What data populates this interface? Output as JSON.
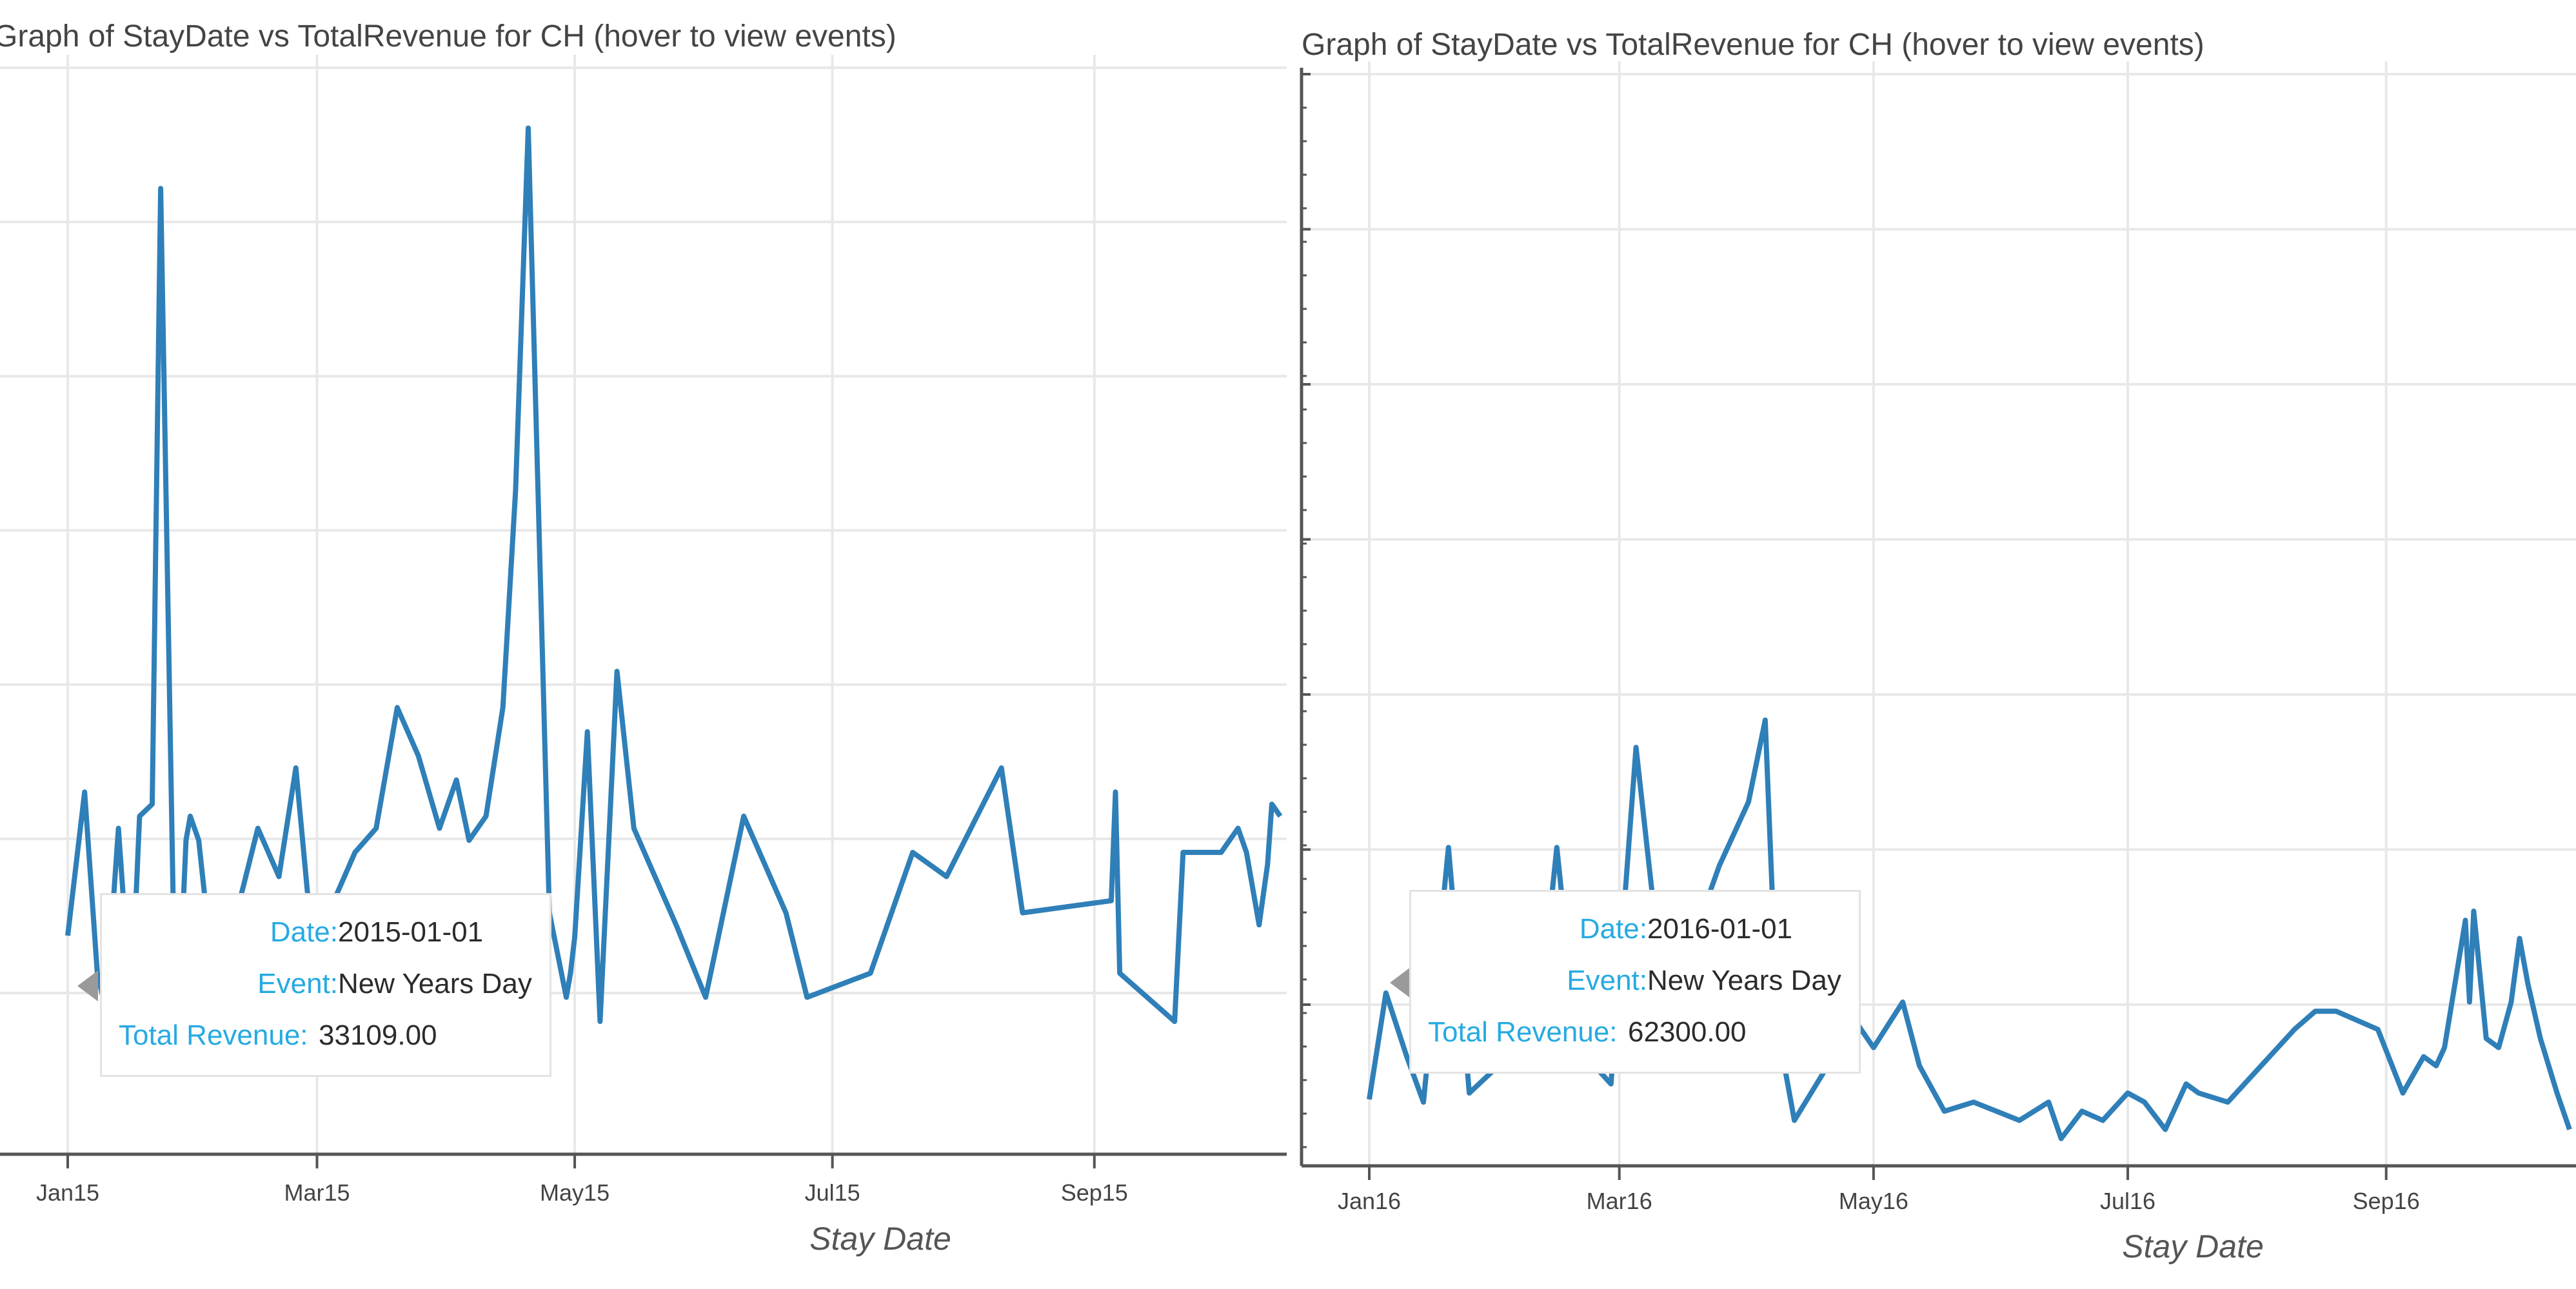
{
  "colors": {
    "line": "#2f7fb8",
    "grid": "#e8e8e8",
    "axis": "#555555",
    "key": "#26aae1"
  },
  "chart_data": [
    {
      "type": "line",
      "title": "Graph of StayDate vs TotalRevenue for CH (hover to view events)",
      "xlabel": "Stay Date",
      "ylabel": "",
      "x_ticks": [
        "Jan15",
        "Mar15",
        "May15",
        "Jul15",
        "Sep15"
      ],
      "xlim": [
        "2015-01-01",
        "2015-10-15"
      ],
      "ylim": [
        15000,
        105000
      ],
      "grid": true,
      "series": [
        {
          "x": [
            "2015-01-01",
            "2015-01-05",
            "2015-01-08",
            "2015-01-10",
            "2015-01-13",
            "2015-01-16",
            "2015-01-18",
            "2015-01-21",
            "2015-01-23",
            "2015-01-26",
            "2015-01-27",
            "2015-01-28",
            "2015-01-29",
            "2015-01-30",
            "2015-02-01",
            "2015-02-05",
            "2015-02-10",
            "2015-02-15",
            "2015-02-20",
            "2015-02-24",
            "2015-02-28",
            "2015-03-05",
            "2015-03-10",
            "2015-03-15",
            "2015-03-20",
            "2015-03-25",
            "2015-03-30",
            "2015-04-03",
            "2015-04-06",
            "2015-04-10",
            "2015-04-14",
            "2015-04-17",
            "2015-04-20",
            "2015-04-25",
            "2015-04-29",
            "2015-04-30",
            "2015-05-01",
            "2015-05-04",
            "2015-05-07",
            "2015-05-11",
            "2015-05-15",
            "2015-05-20",
            "2015-05-25",
            "2015-06-01",
            "2015-06-10",
            "2015-06-20",
            "2015-06-25",
            "2015-07-10",
            "2015-07-20",
            "2015-07-28",
            "2015-08-10",
            "2015-08-15",
            "2015-09-05",
            "2015-09-06",
            "2015-09-07",
            "2015-09-20",
            "2015-09-22",
            "2015-10-01",
            "2015-10-05",
            "2015-10-07",
            "2015-10-10",
            "2015-10-12",
            "2015-10-13",
            "2015-10-15"
          ],
          "values": [
            33109,
            45000,
            30000,
            27000,
            42000,
            27000,
            43000,
            44000,
            95000,
            35000,
            30000,
            33000,
            41000,
            43000,
            41000,
            28000,
            35000,
            42000,
            38000,
            47000,
            32000,
            36000,
            40000,
            42000,
            52000,
            48000,
            42000,
            46000,
            41000,
            43000,
            52000,
            70000,
            100000,
            35000,
            28000,
            30000,
            33000,
            50000,
            26000,
            55000,
            42000,
            38000,
            34000,
            28000,
            43000,
            35000,
            28000,
            30000,
            40000,
            38000,
            47000,
            35000,
            36000,
            45000,
            30000,
            26000,
            40000,
            40000,
            42000,
            40000,
            34000,
            39000,
            44000,
            43000
          ]
        }
      ]
    },
    {
      "type": "line",
      "title": "Graph of StayDate vs TotalRevenue for CH (hover to view events)",
      "xlabel": "Stay Date",
      "ylabel": "",
      "x_ticks": [
        "Jan16",
        "Mar16",
        "May16",
        "Jul16",
        "Sep16"
      ],
      "xlim": [
        "2016-01-01",
        "2016-10-15"
      ],
      "ylim": [
        55000,
        175000
      ],
      "grid": true,
      "series": [
        {
          "x": [
            "2016-01-01",
            "2016-01-05",
            "2016-01-10",
            "2016-01-14",
            "2016-01-20",
            "2016-01-25",
            "2016-02-01",
            "2016-02-10",
            "2016-02-15",
            "2016-02-20",
            "2016-02-28",
            "2016-03-05",
            "2016-03-12",
            "2016-03-18",
            "2016-03-25",
            "2016-04-01",
            "2016-04-05",
            "2016-04-08",
            "2016-04-12",
            "2016-04-20",
            "2016-04-25",
            "2016-05-01",
            "2016-05-08",
            "2016-05-12",
            "2016-05-18",
            "2016-05-25",
            "2016-06-05",
            "2016-06-12",
            "2016-06-15",
            "2016-06-20",
            "2016-06-25",
            "2016-07-01",
            "2016-07-05",
            "2016-07-10",
            "2016-07-15",
            "2016-07-18",
            "2016-07-25",
            "2016-08-10",
            "2016-08-15",
            "2016-08-20",
            "2016-08-30",
            "2016-09-05",
            "2016-09-10",
            "2016-09-13",
            "2016-09-15",
            "2016-09-20",
            "2016-09-21",
            "2016-09-22",
            "2016-09-25",
            "2016-09-28",
            "2016-10-01",
            "2016-10-03",
            "2016-10-05",
            "2016-10-08",
            "2016-10-12",
            "2016-10-15"
          ],
          "values": [
            62300,
            74000,
            67000,
            62000,
            90000,
            63000,
            66000,
            68000,
            90000,
            68000,
            64000,
            101000,
            72000,
            79000,
            88000,
            95000,
            104000,
            70000,
            60000,
            66000,
            72000,
            68000,
            73000,
            66000,
            61000,
            62000,
            60000,
            62000,
            58000,
            61000,
            60000,
            63000,
            62000,
            59000,
            64000,
            63000,
            62000,
            70000,
            72000,
            72000,
            70000,
            63000,
            67000,
            66000,
            68000,
            82000,
            73000,
            83000,
            69000,
            68000,
            73000,
            80000,
            75000,
            69000,
            63000,
            59000
          ]
        }
      ]
    }
  ],
  "tooltips": [
    {
      "date_label": "Date:",
      "date": "2015-01-01",
      "event_label": "Event:",
      "event": "New Years Day",
      "revenue_label": "Total Revenue:",
      "revenue": "33109.00"
    },
    {
      "date_label": "Date:",
      "date": "2016-01-01",
      "event_label": "Event:",
      "event": "New Years Day",
      "revenue_label": "Total Revenue:",
      "revenue": "62300.00"
    }
  ]
}
